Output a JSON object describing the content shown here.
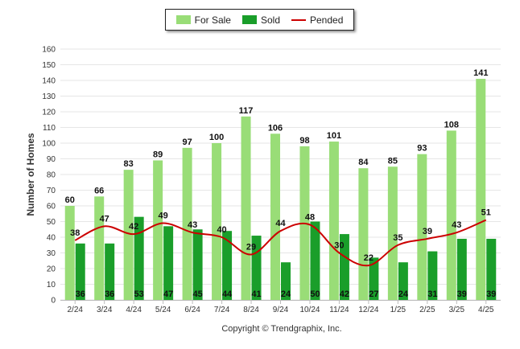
{
  "legend": {
    "for_sale": "For Sale",
    "sold": "Sold",
    "pended": "Pended"
  },
  "copyright": "Copyright © Trendgraphix, Inc.",
  "chart_data": {
    "type": "bar",
    "categories": [
      "2/24",
      "3/24",
      "4/24",
      "5/24",
      "6/24",
      "7/24",
      "8/24",
      "9/24",
      "10/24",
      "11/24",
      "12/24",
      "1/25",
      "2/25",
      "3/25",
      "4/25"
    ],
    "series": [
      {
        "name": "For Sale",
        "type": "bar",
        "color": "#99dd77",
        "values": [
          60,
          66,
          83,
          89,
          97,
          100,
          117,
          106,
          98,
          101,
          84,
          85,
          93,
          108,
          141
        ]
      },
      {
        "name": "Sold",
        "type": "bar",
        "color": "#1a9e2a",
        "values": [
          36,
          36,
          53,
          47,
          45,
          44,
          41,
          24,
          50,
          42,
          27,
          24,
          31,
          39,
          39
        ]
      },
      {
        "name": "Pended",
        "type": "line",
        "color": "#cc0000",
        "values": [
          38,
          47,
          42,
          49,
          43,
          40,
          29,
          44,
          48,
          30,
          22,
          35,
          39,
          43,
          51
        ]
      }
    ],
    "ylabel": "Number of Homes",
    "xlabel": "",
    "ylim": [
      0,
      160
    ],
    "yticks": [
      0,
      10,
      20,
      30,
      40,
      50,
      60,
      70,
      80,
      90,
      100,
      110,
      120,
      130,
      140,
      150,
      160
    ],
    "grid": true,
    "legend_position": "top-center"
  }
}
